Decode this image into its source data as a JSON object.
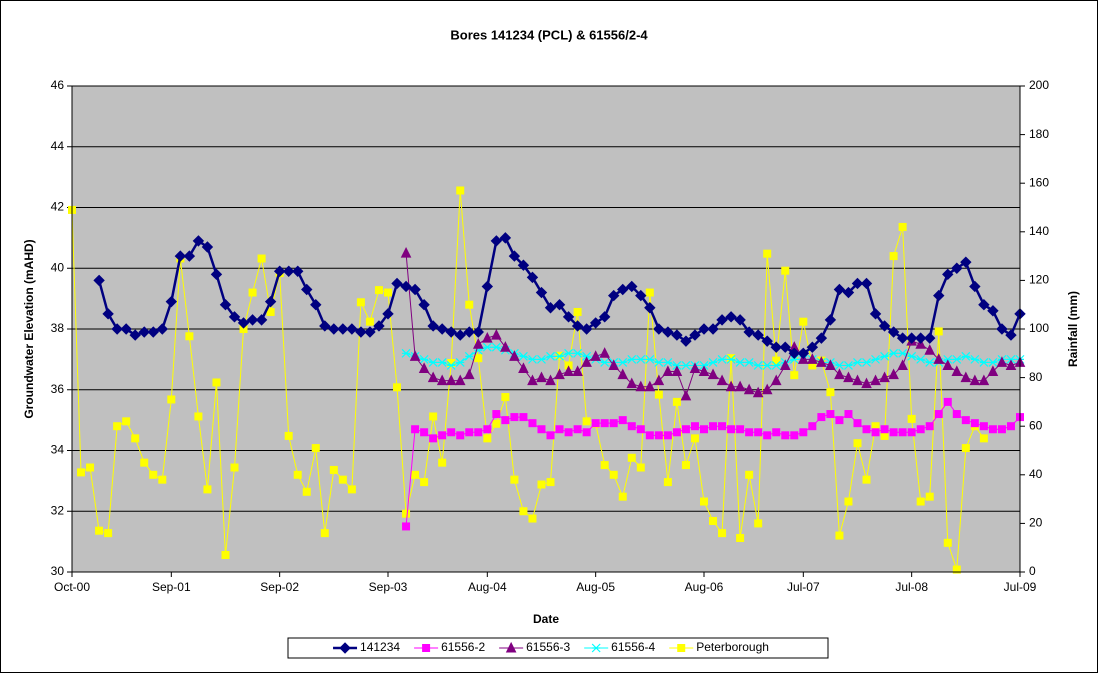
{
  "chart_data": {
    "type": "line",
    "title": "Bores 141234 (PCL) & 61556/2-4",
    "xlabel": "Date",
    "ylabel": "Groundwater Elevation (mAHD)",
    "y2label": "Rainfall (mm)",
    "x": [
      "Oct-00",
      "Nov-00",
      "Dec-00",
      "Jan-01",
      "Feb-01",
      "Mar-01",
      "Apr-01",
      "May-01",
      "Jun-01",
      "Jul-01",
      "Aug-01",
      "Sep-01",
      "Oct-01",
      "Nov-01",
      "Dec-01",
      "Jan-02",
      "Feb-02",
      "Mar-02",
      "Apr-02",
      "May-02",
      "Jun-02",
      "Jul-02",
      "Aug-02",
      "Sep-02",
      "Oct-02",
      "Nov-02",
      "Dec-02",
      "Jan-03",
      "Feb-03",
      "Mar-03",
      "Apr-03",
      "May-03",
      "Jun-03",
      "Jul-03",
      "Aug-03",
      "Sep-03",
      "Oct-03",
      "Nov-03",
      "Dec-03",
      "Jan-04",
      "Feb-04",
      "Mar-04",
      "Apr-04",
      "May-04",
      "Jun-04",
      "Jul-04",
      "Aug-04",
      "Sep-04",
      "Oct-04",
      "Nov-04",
      "Dec-04",
      "Jan-05",
      "Feb-05",
      "Mar-05",
      "Apr-05",
      "May-05",
      "Jun-05",
      "Jul-05",
      "Aug-05",
      "Sep-05",
      "Oct-05",
      "Nov-05",
      "Dec-05",
      "Jan-06",
      "Feb-06",
      "Mar-06",
      "Apr-06",
      "May-06",
      "Jun-06",
      "Jul-06",
      "Aug-06",
      "Sep-06",
      "Oct-06",
      "Nov-06",
      "Dec-06",
      "Jan-07",
      "Feb-07",
      "Mar-07",
      "Apr-07",
      "May-07",
      "Jun-07",
      "Jul-07",
      "Aug-07",
      "Sep-07",
      "Oct-07",
      "Nov-07",
      "Dec-07",
      "Jan-08",
      "Feb-08",
      "Mar-08",
      "Apr-08",
      "May-08",
      "Jun-08",
      "Jul-08",
      "Aug-08",
      "Sep-08",
      "Oct-08",
      "Nov-08",
      "Dec-08",
      "Jan-09",
      "Feb-09",
      "Mar-09",
      "Apr-09",
      "May-09",
      "Jun-09",
      "Jul-09"
    ],
    "xticks": [
      "Oct-00",
      "Sep-01",
      "Sep-02",
      "Sep-03",
      "Aug-04",
      "Aug-05",
      "Aug-06",
      "Jul-07",
      "Jul-08",
      "Jul-09"
    ],
    "ylim": [
      30,
      46
    ],
    "yticks": [
      30,
      32,
      34,
      36,
      38,
      40,
      42,
      44,
      46
    ],
    "y2lim": [
      0,
      200
    ],
    "y2ticks": [
      0,
      20,
      40,
      60,
      80,
      100,
      120,
      140,
      160,
      180,
      200
    ],
    "grid": true,
    "legend": "bottom",
    "series": [
      {
        "name": "141234",
        "color": "#000080",
        "marker": "diamond",
        "values": [
          null,
          null,
          null,
          39.6,
          38.5,
          38.0,
          38.0,
          37.8,
          37.9,
          37.9,
          38.0,
          38.9,
          40.4,
          40.4,
          40.9,
          40.7,
          39.8,
          38.8,
          38.4,
          38.2,
          38.3,
          38.3,
          38.9,
          39.9,
          39.9,
          39.9,
          39.3,
          38.8,
          38.1,
          38.0,
          38.0,
          38.0,
          37.9,
          37.9,
          38.1,
          38.5,
          39.5,
          39.4,
          39.3,
          38.8,
          38.1,
          38.0,
          37.9,
          37.8,
          37.9,
          37.9,
          39.4,
          40.9,
          41.0,
          40.4,
          40.1,
          39.7,
          39.2,
          38.7,
          38.8,
          38.4,
          38.1,
          38.0,
          38.2,
          38.4,
          39.1,
          39.3,
          39.4,
          39.1,
          38.7,
          38.0,
          37.9,
          37.8,
          37.6,
          37.8,
          38.0,
          38.0,
          38.3,
          38.4,
          38.3,
          37.9,
          37.8,
          37.6,
          37.4,
          37.4,
          37.2,
          37.2,
          37.4,
          37.7,
          38.3,
          39.3,
          39.2,
          39.5,
          39.5,
          38.5,
          38.1,
          37.9,
          37.7,
          37.7,
          37.7,
          37.7,
          39.1,
          39.8,
          40.0,
          40.2,
          39.4,
          38.8,
          38.6,
          38.0,
          37.8,
          38.5
        ]
      },
      {
        "name": "61556-2",
        "color": "#ff00ff",
        "marker": "square",
        "values": [
          null,
          null,
          null,
          null,
          null,
          null,
          null,
          null,
          null,
          null,
          null,
          null,
          null,
          null,
          null,
          null,
          null,
          null,
          null,
          null,
          null,
          null,
          null,
          null,
          null,
          null,
          null,
          null,
          null,
          null,
          null,
          null,
          null,
          null,
          null,
          null,
          null,
          31.5,
          34.7,
          34.6,
          34.4,
          34.5,
          34.6,
          34.5,
          34.6,
          34.6,
          34.7,
          35.2,
          35.0,
          35.1,
          35.1,
          34.9,
          34.7,
          34.5,
          34.7,
          34.6,
          34.7,
          34.6,
          34.9,
          34.9,
          34.9,
          35.0,
          34.8,
          34.7,
          34.5,
          34.5,
          34.5,
          34.6,
          34.7,
          34.8,
          34.7,
          34.8,
          34.8,
          34.7,
          34.7,
          34.6,
          34.6,
          34.5,
          34.6,
          34.5,
          34.5,
          34.6,
          34.8,
          35.1,
          35.2,
          35.0,
          35.2,
          34.9,
          34.7,
          34.6,
          34.7,
          34.6,
          34.6,
          34.6,
          34.7,
          34.8,
          35.2,
          35.6,
          35.2,
          35.0,
          34.9,
          34.8,
          34.7,
          34.7,
          34.8,
          35.1
        ]
      },
      {
        "name": "61556-3",
        "color": "#800080",
        "marker": "triangle",
        "values": [
          null,
          null,
          null,
          null,
          null,
          null,
          null,
          null,
          null,
          null,
          null,
          null,
          null,
          null,
          null,
          null,
          null,
          null,
          null,
          null,
          null,
          null,
          null,
          null,
          null,
          null,
          null,
          null,
          null,
          null,
          null,
          null,
          null,
          null,
          null,
          null,
          null,
          40.5,
          37.1,
          36.7,
          36.4,
          36.3,
          36.3,
          36.3,
          36.5,
          37.5,
          37.7,
          37.8,
          37.4,
          37.1,
          36.7,
          36.3,
          36.4,
          36.3,
          36.5,
          36.6,
          36.6,
          36.9,
          37.1,
          37.2,
          36.8,
          36.5,
          36.2,
          36.1,
          36.1,
          36.3,
          36.6,
          36.6,
          35.8,
          36.7,
          36.6,
          36.5,
          36.3,
          36.1,
          36.1,
          36.0,
          35.9,
          36.0,
          36.3,
          36.8,
          37.4,
          37.0,
          37.0,
          36.9,
          36.8,
          36.5,
          36.4,
          36.3,
          36.2,
          36.3,
          36.4,
          36.5,
          36.8,
          37.6,
          37.5,
          37.3,
          37.0,
          36.8,
          36.6,
          36.4,
          36.3,
          36.3,
          36.6,
          36.9,
          36.8,
          36.9
        ]
      },
      {
        "name": "61556-4",
        "color": "#00ffff",
        "marker": "x",
        "values": [
          null,
          null,
          null,
          null,
          null,
          null,
          null,
          null,
          null,
          null,
          null,
          null,
          null,
          null,
          null,
          null,
          null,
          null,
          null,
          null,
          null,
          null,
          null,
          null,
          null,
          null,
          null,
          null,
          null,
          null,
          null,
          null,
          null,
          null,
          null,
          null,
          null,
          37.2,
          37.1,
          37.0,
          36.9,
          36.9,
          36.8,
          36.9,
          37.1,
          37.3,
          37.4,
          37.4,
          37.3,
          37.2,
          37.1,
          37.0,
          37.0,
          37.1,
          37.1,
          37.2,
          37.2,
          37.1,
          37.0,
          36.9,
          36.9,
          36.9,
          37.0,
          37.0,
          37.0,
          36.9,
          36.9,
          36.8,
          36.8,
          36.8,
          36.8,
          36.9,
          37.0,
          37.0,
          36.9,
          36.9,
          36.8,
          36.8,
          36.8,
          36.9,
          37.0,
          37.0,
          37.0,
          36.9,
          36.9,
          36.8,
          36.8,
          36.9,
          36.9,
          37.0,
          37.1,
          37.2,
          37.2,
          37.1,
          37.0,
          36.9,
          36.9,
          37.0,
          37.0,
          37.1,
          37.0,
          36.9,
          36.9,
          37.0,
          37.0,
          37.0
        ]
      },
      {
        "name": "Peterborough",
        "color": "#ffff00",
        "marker": "square",
        "axis": "y2",
        "values": [
          149,
          41,
          43,
          17,
          16,
          60,
          62,
          55,
          45,
          40,
          38,
          71,
          129,
          97,
          64,
          34,
          78,
          7,
          43,
          100,
          115,
          129,
          107,
          123,
          56,
          40,
          33,
          51,
          16,
          42,
          38,
          34,
          111,
          103,
          116,
          115,
          76,
          24,
          40,
          37,
          64,
          45,
          86,
          157,
          110,
          88,
          55,
          61,
          72,
          38,
          25,
          22,
          36,
          37,
          89,
          85,
          107,
          62,
          61,
          44,
          40,
          31,
          47,
          43,
          115,
          73,
          37,
          70,
          44,
          55,
          29,
          21,
          16,
          88,
          14,
          40,
          20,
          131,
          87,
          124,
          81,
          103,
          85,
          87,
          74,
          15,
          29,
          53,
          38,
          60,
          56,
          130,
          142,
          63,
          29,
          31,
          99,
          12,
          1,
          51,
          60,
          55,
          null,
          null,
          null,
          null
        ]
      }
    ]
  }
}
